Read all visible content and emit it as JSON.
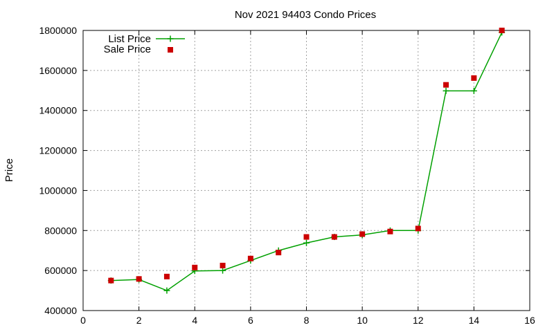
{
  "chart_data": {
    "type": "line",
    "title": "Nov 2021 94403 Condo Prices",
    "xlabel": "",
    "ylabel": "Price",
    "xlim": [
      0,
      16
    ],
    "ylim": [
      400000,
      1800000
    ],
    "x_ticks": [
      "0",
      "2",
      "4",
      "6",
      "8",
      "10",
      "12",
      "14",
      "16"
    ],
    "y_ticks": [
      "400000",
      "600000",
      "800000",
      "1000000",
      "1200000",
      "1400000",
      "1600000",
      "1800000"
    ],
    "grid": true,
    "legend_position": "top-left",
    "series": [
      {
        "name": "List Price",
        "style": "line-with-plus-markers",
        "color": "#00a000",
        "x": [
          1,
          2,
          3,
          4,
          5,
          6,
          7,
          8,
          9,
          10,
          11,
          12,
          13,
          14,
          15
        ],
        "y": [
          550000,
          555000,
          500000,
          598000,
          600000,
          650000,
          700000,
          738000,
          768000,
          778000,
          800000,
          800000,
          1498000,
          1498000,
          1790000
        ]
      },
      {
        "name": "Sale Price",
        "style": "square-markers",
        "color": "#cc0000",
        "x": [
          1,
          2,
          3,
          4,
          5,
          6,
          7,
          8,
          9,
          10,
          11,
          12,
          13,
          14,
          15
        ],
        "y": [
          550000,
          558000,
          570000,
          615000,
          625000,
          660000,
          690000,
          768000,
          768000,
          782000,
          795000,
          810000,
          1528000,
          1562000,
          1800000
        ]
      }
    ]
  }
}
